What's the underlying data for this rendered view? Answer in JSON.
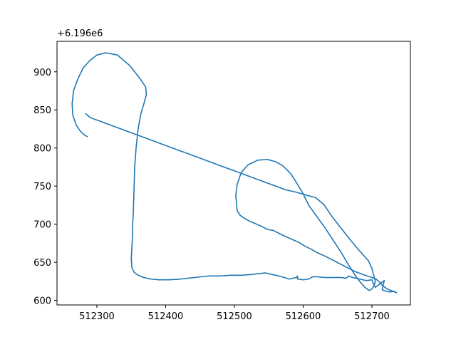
{
  "chart_data": {
    "type": "line",
    "title": "",
    "xlabel": "",
    "ylabel": "",
    "y_offset_label": "+6.196e6",
    "xlim": [
      512242,
      512756
    ],
    "ylim": [
      594,
      940
    ],
    "xticks": [
      {
        "value": 512300,
        "label": "512300"
      },
      {
        "value": 512400,
        "label": "512400"
      },
      {
        "value": 512500,
        "label": "512500"
      },
      {
        "value": 512600,
        "label": "512600"
      },
      {
        "value": 512700,
        "label": "512700"
      }
    ],
    "yticks": [
      {
        "value": 600,
        "label": "600"
      },
      {
        "value": 650,
        "label": "650"
      },
      {
        "value": 700,
        "label": "700"
      },
      {
        "value": 750,
        "label": "750"
      },
      {
        "value": 800,
        "label": "800"
      },
      {
        "value": 850,
        "label": "850"
      },
      {
        "value": 900,
        "label": "900"
      }
    ],
    "grid": false,
    "series": [
      {
        "color": "#1f77b4",
        "x": [
          512286,
          512282,
          512276,
          512270,
          512265,
          512264,
          512266,
          512272,
          512280,
          512290,
          512300,
          512313,
          512330,
          512348,
          512362,
          512371,
          512372,
          512369,
          512364,
          512360,
          512357,
          512355,
          512354,
          512353,
          512352,
          512352,
          512351,
          512350,
          512351,
          512354,
          512360,
          512368,
          512378,
          512390,
          512405,
          512422,
          512442,
          512462,
          512480,
          512495,
          512510,
          512525,
          512545,
          512565,
          512580,
          512590,
          512592,
          512592,
          512600,
          512608,
          512614,
          512620,
          512632,
          512645,
          512656,
          512662,
          512664,
          512666,
          512672,
          512682,
          512692,
          512700,
          512702,
          512705,
          512712,
          512718,
          512715,
          512720,
          512726,
          512732,
          512736,
          512722,
          512715,
          512710,
          512706,
          512700,
          512690,
          512675,
          512660,
          512645,
          512632,
          512622,
          512612,
          512603,
          512594,
          512584,
          512574,
          512565,
          512556,
          512548,
          512540,
          512530,
          512522,
          512514,
          512508,
          512504,
          512502,
          512504,
          512510,
          512520,
          512534,
          512548,
          512560,
          512570,
          512577,
          512583,
          512590,
          512600,
          512608,
          512616,
          512624,
          512632,
          512640,
          512648,
          512656,
          512663,
          512670,
          512677,
          512684,
          512690,
          512696,
          512700,
          512703,
          512705,
          512702,
          512700,
          512695,
          512682,
          512668,
          512655,
          512642,
          512630,
          512618,
          512605,
          512590,
          512575,
          512560,
          512545,
          512530,
          512515,
          512500,
          512485,
          512470,
          512455,
          512440,
          512425,
          512410,
          512395,
          512380,
          512365,
          512350,
          512335,
          512320,
          512305,
          512290,
          512284
        ],
        "y": [
          815,
          817,
          822,
          830,
          843,
          858,
          875,
          890,
          905,
          915,
          922,
          925,
          922,
          908,
          892,
          880,
          870,
          860,
          845,
          825,
          800,
          775,
          745,
          715,
          700,
          690,
          670,
          655,
          643,
          637,
          633,
          630,
          628,
          627,
          627,
          628,
          630,
          632,
          632,
          633,
          633,
          634,
          636,
          632,
          628,
          630,
          632,
          628,
          627,
          628,
          631,
          631,
          630,
          630,
          630,
          629,
          630,
          632,
          630,
          628,
          626,
          627,
          622,
          617,
          622,
          626,
          614,
          612,
          611,
          612,
          610,
          615,
          620,
          625,
          628,
          630,
          633,
          638,
          645,
          652,
          658,
          662,
          667,
          671,
          676,
          680,
          684,
          688,
          692,
          693,
          697,
          701,
          704,
          708,
          712,
          718,
          738,
          752,
          768,
          778,
          784,
          785,
          782,
          777,
          771,
          765,
          755,
          740,
          725,
          715,
          705,
          695,
          684,
          673,
          662,
          651,
          641,
          631,
          623,
          617,
          613,
          615,
          619,
          625,
          635,
          642,
          652,
          665,
          680,
          695,
          710,
          726,
          735,
          738,
          742,
          745,
          750,
          755,
          760,
          765,
          770,
          775,
          780,
          785,
          790,
          795,
          800,
          805,
          810,
          815,
          820,
          825,
          830,
          835,
          840,
          845
        ]
      }
    ]
  }
}
